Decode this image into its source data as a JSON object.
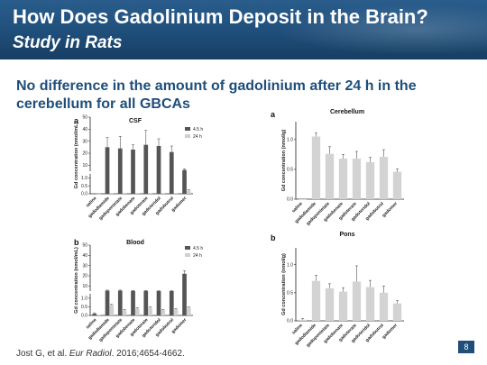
{
  "slide": {
    "title": "How Does Gadolinium Deposit in the Brain?",
    "subtitle": "Study in Rats",
    "statement": "No difference in the amount of gadolinium after 24 h in the cerebellum for all GBCAs",
    "citation_prefix": "Jost G, et al. ",
    "citation_journal": "Eur Radiol",
    "citation_suffix": ". 2016;4654-4662.",
    "page_number": "8"
  },
  "colors": {
    "header": "#1f4e7a",
    "series_dark": "#555555",
    "series_light": "#d0d0d0",
    "bar_single": "#d3d3d3"
  },
  "chart_data": [
    {
      "panel": "a",
      "title": "CSF",
      "type": "bar",
      "ylabel": "Gd concentration (nmol/mL)",
      "y_ticks_upper": [
        "50",
        "40",
        "30",
        "20",
        "10"
      ],
      "y_ticks_lower": [
        "1.0",
        "0.5",
        "0.0"
      ],
      "y_scale": "broken",
      "ylim_lower": [
        0,
        1.25
      ],
      "ylim_upper": [
        5,
        50
      ],
      "categories": [
        "saline",
        "gadodiamide",
        "gadopentetate",
        "gadobenate",
        "gadoterate",
        "gadoteridol",
        "gadobutrol",
        "gadomer"
      ],
      "series": [
        {
          "name": "4.5 h",
          "values": [
            0.02,
            25,
            24,
            23,
            27,
            26,
            21,
            6
          ],
          "errors": [
            0,
            8,
            10,
            4,
            12,
            6,
            5,
            1
          ]
        },
        {
          "name": "24 h",
          "values": [
            0.01,
            0.02,
            0.02,
            0.02,
            0.02,
            0.02,
            0.02,
            0.2
          ],
          "errors": [
            0,
            0,
            0,
            0,
            0,
            0,
            0,
            0.05
          ]
        }
      ]
    },
    {
      "panel": "b",
      "title": "Blood",
      "type": "bar",
      "ylabel": "Gd concentration (nmol/mL)",
      "y_ticks_upper": [
        "50",
        "40",
        "30",
        "20",
        "10"
      ],
      "y_ticks_lower": [
        "1.0",
        "0.5",
        "0.0"
      ],
      "y_scale": "broken",
      "ylim_lower": [
        0,
        1.25
      ],
      "ylim_upper": [
        5,
        50
      ],
      "categories": [
        "saline",
        "gadodiamide",
        "gadopentetate",
        "gadobenate",
        "gadoterate",
        "gadoteridol",
        "gadobutrol",
        "gadomer"
      ],
      "series": [
        {
          "name": "4.5 h",
          "values": [
            0.1,
            5.5,
            5.5,
            5.2,
            5.2,
            5.1,
            5.1,
            22
          ],
          "errors": [
            0.05,
            0.5,
            0.5,
            0.4,
            0.4,
            0.3,
            0.3,
            3
          ]
        },
        {
          "name": "24 h",
          "values": [
            0.02,
            0.6,
            0.3,
            0.4,
            0.45,
            0.3,
            0.35,
            0.45
          ],
          "errors": [
            0,
            0.05,
            0.05,
            0.05,
            0.05,
            0.05,
            0.05,
            0.05
          ]
        }
      ]
    },
    {
      "panel": "a",
      "title": "Cerebellum",
      "type": "bar",
      "ylabel": "Gd concentration (nmol/g)",
      "y_ticks": [
        "1.0",
        "0.5",
        "0.0"
      ],
      "ylim": [
        0,
        1.3
      ],
      "categories": [
        "saline",
        "gadodiamide",
        "gadopentetate",
        "gadobenate",
        "gadoterate",
        "gadoteridol",
        "gadobutrol",
        "gadomer"
      ],
      "values": [
        0.0,
        1.05,
        0.76,
        0.68,
        0.68,
        0.62,
        0.71,
        0.46
      ],
      "errors": [
        0,
        0.06,
        0.12,
        0.07,
        0.12,
        0.08,
        0.12,
        0.05
      ]
    },
    {
      "panel": "b",
      "title": "Pons",
      "type": "bar",
      "ylabel": "Gd concentration (nmol/g)",
      "y_ticks": [
        "1.0",
        "0.5",
        "0.0"
      ],
      "ylim": [
        0,
        1.3
      ],
      "categories": [
        "saline",
        "gadodiamide",
        "gadopentetate",
        "gadobenate",
        "gadoterate",
        "gadoteridol",
        "gadobutrol",
        "gadomer"
      ],
      "values": [
        0.02,
        0.71,
        0.58,
        0.52,
        0.7,
        0.6,
        0.5,
        0.31
      ],
      "errors": [
        0.02,
        0.1,
        0.08,
        0.07,
        0.28,
        0.12,
        0.12,
        0.05
      ]
    }
  ]
}
